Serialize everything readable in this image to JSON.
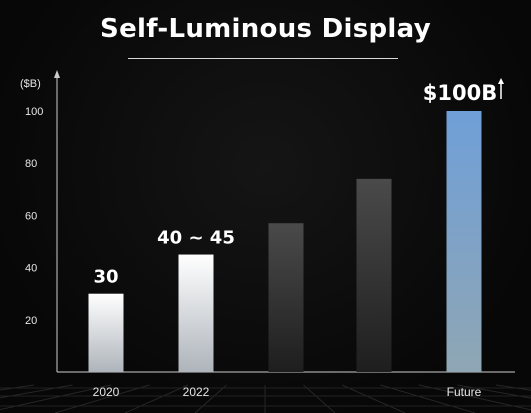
{
  "title": "Self-Luminous Display",
  "chart_data": {
    "type": "bar",
    "title": "Self-Luminous Display",
    "ylabel": "($B)",
    "xlabel": "",
    "ylim": [
      0,
      100
    ],
    "yticks": [
      20,
      40,
      60,
      80,
      100
    ],
    "categories": [
      "2020",
      "2022",
      "",
      "",
      "Future"
    ],
    "values": [
      30,
      45,
      57,
      74,
      100
    ],
    "data_labels": [
      "30",
      "40 ~ 45",
      "",
      "",
      "$100B"
    ],
    "grid": false,
    "colors": {
      "light_bar_top": "#ffffff",
      "light_bar_bottom": "#aeb4bb",
      "dark_bar_top": "#4a4a4a",
      "dark_bar_bottom": "#232323",
      "future_bar_top": "#6f9fd8",
      "future_bar_bottom": "#8aa3b6",
      "axis": "#cccccc",
      "background": "#0a0a0a"
    }
  }
}
